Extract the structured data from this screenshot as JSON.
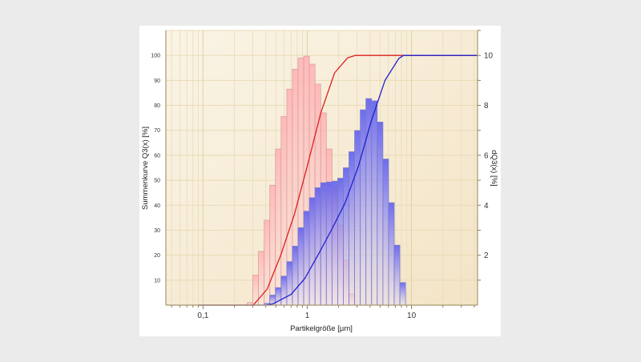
{
  "chart_data": {
    "type": "bar",
    "xlabel": "Partikelgröße  [µm]",
    "ylabel_left": "Summenkurve  Q3(x)  [%]",
    "ylabel_right": "dQ3(x)  [%]",
    "x_scale": "log",
    "xlim": [
      0.044,
      43
    ],
    "ylim_left": [
      0,
      110
    ],
    "ylim_right": [
      0,
      11
    ],
    "grid": true,
    "x_ticks": [
      {
        "value": 0.1,
        "label": "0,1"
      },
      {
        "value": 1,
        "label": "1"
      },
      {
        "value": 10,
        "label": "10"
      }
    ],
    "y_ticks_left": [
      "10",
      "20",
      "30",
      "40",
      "50",
      "60",
      "70",
      "80",
      "90",
      "100"
    ],
    "y_ticks_right": [
      "2",
      "4",
      "6",
      "8",
      "10"
    ],
    "histograms": [
      {
        "color": "#ff9c9c",
        "axis": "right",
        "bin_edges_um": [
          0.265,
          0.3,
          0.34,
          0.386,
          0.437,
          0.495,
          0.561,
          0.636,
          0.72,
          0.816,
          0.925,
          1.048,
          1.187,
          1.345,
          1.524,
          1.727,
          1.957,
          2.217,
          2.512,
          2.846
        ],
        "values": [
          0.1,
          1.2,
          2.15,
          3.4,
          4.8,
          6.25,
          7.55,
          8.65,
          9.45,
          9.9,
          9.97,
          9.65,
          8.85,
          7.7,
          6.25,
          4.7,
          3.2,
          1.8,
          0.45
        ]
      },
      {
        "color": "#5a5af0",
        "axis": "right",
        "bin_edges_um": [
          0.386,
          0.437,
          0.495,
          0.561,
          0.636,
          0.72,
          0.816,
          0.925,
          1.048,
          1.187,
          1.345,
          1.524,
          1.727,
          1.957,
          2.217,
          2.512,
          2.846,
          3.225,
          3.654,
          4.14,
          4.69,
          5.314,
          6.021,
          6.822,
          7.73,
          8.758
        ],
        "values": [
          0.07,
          0.4,
          0.7,
          1.16,
          1.74,
          2.36,
          3.1,
          3.76,
          4.3,
          4.7,
          4.9,
          4.93,
          4.96,
          5.08,
          5.5,
          6.14,
          6.99,
          7.82,
          8.27,
          8.18,
          7.33,
          5.85,
          4.1,
          2.4,
          0.9
        ]
      }
    ],
    "cumulative": [
      {
        "color": "#dd2020",
        "axis": "left",
        "x": [
          0.09,
          0.3,
          0.311,
          0.412,
          0.557,
          0.753,
          1.0,
          1.35,
          1.83,
          2.43,
          2.89,
          43
        ],
        "y": [
          0,
          0,
          0.5,
          6.4,
          20,
          36.4,
          55.7,
          77,
          93,
          99,
          100,
          100
        ]
      },
      {
        "color": "#2020cc",
        "axis": "left",
        "x": [
          0.09,
          0.4,
          0.467,
          0.7,
          0.948,
          1.28,
          1.7,
          2.3,
          3.1,
          4.13,
          5.57,
          7.53,
          8.36,
          43
        ],
        "y": [
          0,
          0,
          0.5,
          4.3,
          10.7,
          20.4,
          30,
          40.8,
          55.7,
          74,
          90,
          98.7,
          100,
          100
        ]
      }
    ]
  }
}
